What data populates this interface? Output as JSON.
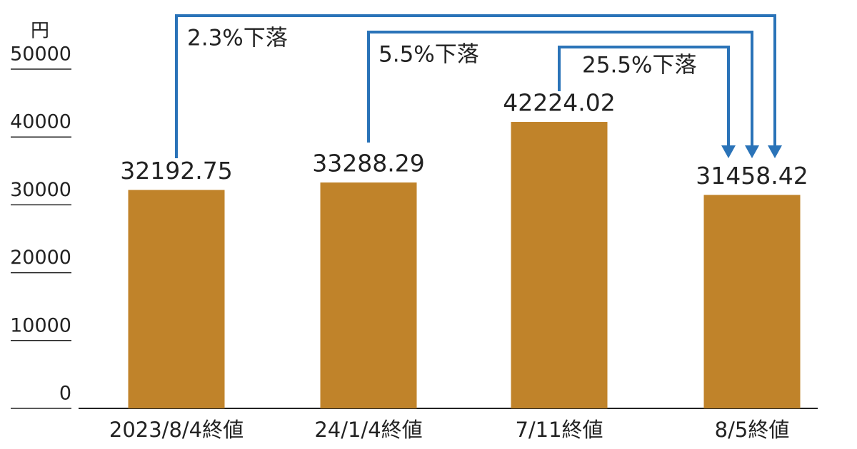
{
  "chart_data": {
    "type": "bar",
    "y_unit": "円",
    "categories": [
      "2023/8/4終値",
      "24/1/4終値",
      "7/11終値",
      "8/5終値"
    ],
    "values": [
      32192.75,
      33288.29,
      42224.02,
      31458.42
    ],
    "color": "#c0832a",
    "ylim": [
      0,
      50000
    ],
    "yticks": [
      0,
      10000,
      20000,
      30000,
      40000,
      50000
    ],
    "annotations": [
      {
        "text": "2.3%下落",
        "color": "#2a73b8"
      },
      {
        "text": "5.5%下落",
        "color": "#2a73b8"
      },
      {
        "text": "25.5%下落",
        "color": "#2a73b8"
      }
    ]
  }
}
